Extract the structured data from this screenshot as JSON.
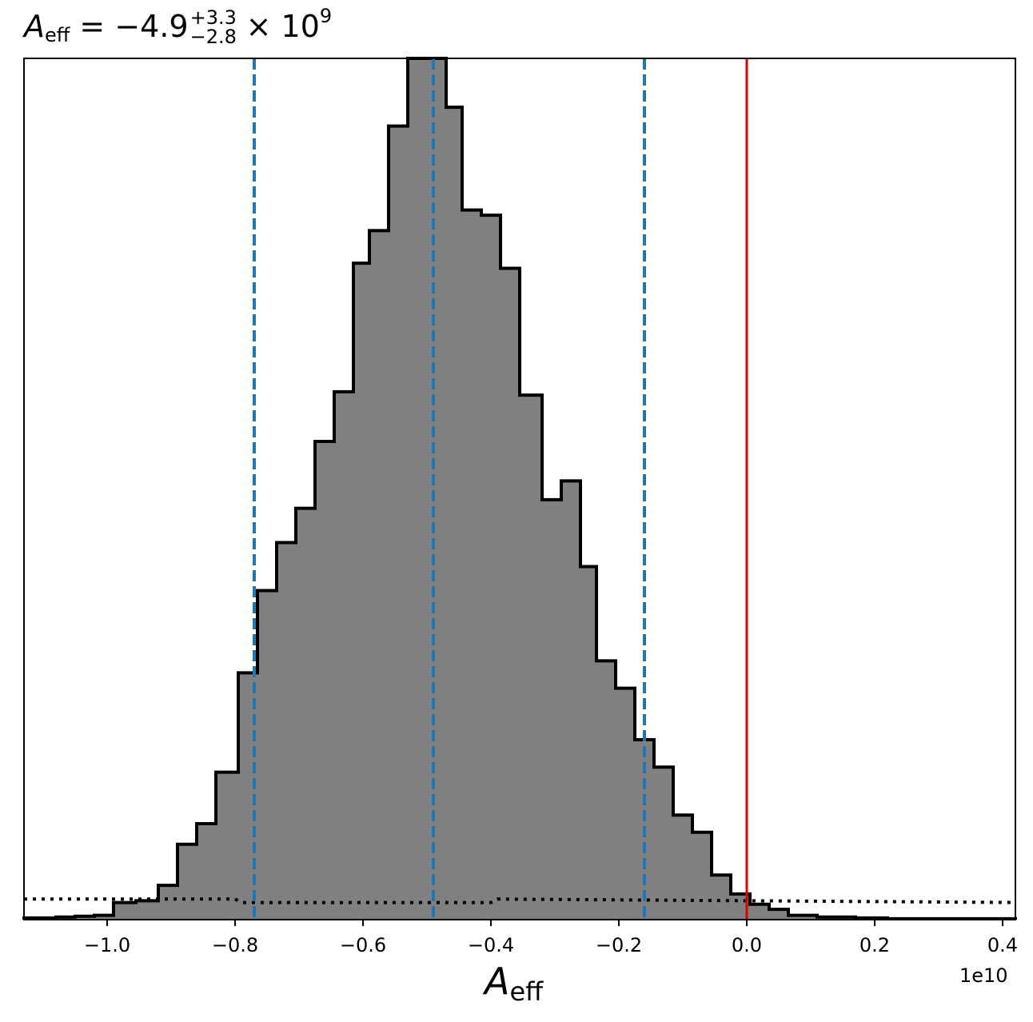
{
  "title": {
    "symbol": "A",
    "subscript": "eff",
    "equals": "= −4.9",
    "upper": "+3.3",
    "lower": "−2.8",
    "times": "× 10",
    "exponent": "9"
  },
  "xlabel": {
    "symbol": "A",
    "subscript": "eff"
  },
  "offset_text": "1e10",
  "chart_data": {
    "type": "histogram",
    "xlim": [
      -1.13,
      0.42
    ],
    "ylim": [
      0,
      1005
    ],
    "x_scale_factor": "1e10",
    "bins": {
      "edges": [
        -1.13,
        -1.08,
        -1.05,
        -1.02,
        -0.99,
        -0.955,
        -0.92,
        -0.89,
        -0.86,
        -0.83,
        -0.795,
        -0.765,
        -0.735,
        -0.705,
        -0.675,
        -0.645,
        -0.615,
        -0.59,
        -0.56,
        -0.53,
        -0.5,
        -0.47,
        -0.445,
        -0.415,
        -0.385,
        -0.355,
        -0.32,
        -0.29,
        -0.26,
        -0.235,
        -0.205,
        -0.175,
        -0.145,
        -0.115,
        -0.085,
        -0.055,
        -0.025,
        0.005,
        0.035,
        0.065,
        0.11,
        0.17,
        0.22,
        0.27,
        0.42
      ],
      "counts": [
        2,
        3,
        4,
        5,
        20,
        22,
        40,
        88,
        112,
        172,
        288,
        384,
        440,
        480,
        558,
        616,
        766,
        804,
        926,
        1005,
        1005,
        948,
        828,
        822,
        760,
        612,
        490,
        512,
        412,
        302,
        270,
        210,
        178,
        122,
        102,
        52,
        30,
        18,
        12,
        5,
        3,
        2,
        1,
        1
      ],
      "fill": "#808080",
      "edge": "#000000"
    },
    "prior_dotted_line": {
      "x": [
        -1.13,
        -0.8,
        -0.79,
        -0.4,
        -0.39,
        0.42
      ],
      "y": [
        24,
        24,
        20,
        20,
        24,
        20
      ],
      "color": "#000000",
      "style": "dotted"
    },
    "quantile_lines": {
      "x": [
        -0.77,
        -0.49,
        -0.16
      ],
      "color": "#1f77b4",
      "style": "dashed"
    },
    "truth_line": {
      "x": 0.0,
      "color": "#e00000"
    },
    "xticks": [
      -1.0,
      -0.8,
      -0.6,
      -0.4,
      -0.2,
      0.0,
      0.2,
      0.4
    ],
    "xtick_labels": [
      "−1.0",
      "−0.8",
      "−0.6",
      "−0.4",
      "−0.2",
      "0.0",
      "0.2",
      "0.4"
    ]
  }
}
